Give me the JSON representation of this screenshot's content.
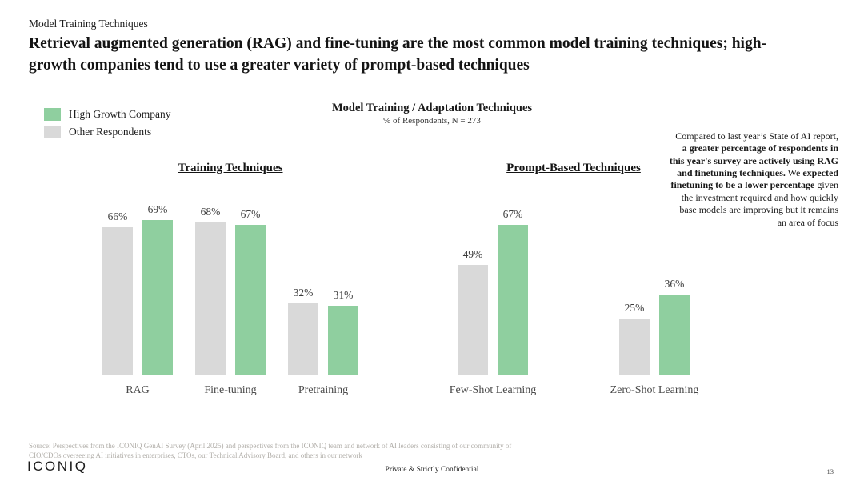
{
  "page": {
    "eyebrow": "Model Training Techniques",
    "title": "Retrieval augmented generation (RAG) and fine-tuning are the most common model training techniques; high-growth companies tend to use a greater variety of prompt-based techniques"
  },
  "legend": {
    "items": [
      {
        "label": "High Growth Company",
        "color": "#8fcf9f"
      },
      {
        "label": "Other Respondents",
        "color": "#d9d9d9"
      }
    ]
  },
  "chart_header": {
    "title": "Model Training / Adaptation Techniques",
    "subtitle": "% of Respondents, N = 273"
  },
  "annotation": {
    "segments": [
      {
        "text": "Compared to last year’s State of AI report, ",
        "bold": false
      },
      {
        "text": "a greater percentage of respondents in this year's survey are actively using RAG and finetuning techniques.",
        "bold": true
      },
      {
        "text": " We ",
        "bold": false
      },
      {
        "text": "expected finetuning to be a lower percentage",
        "bold": true
      },
      {
        "text": " given the investment required and how quickly base models are improving but it remains an area of focus",
        "bold": false
      }
    ]
  },
  "chart_data": [
    {
      "type": "bar",
      "title": "Training Techniques",
      "categories": [
        "RAG",
        "Fine-tuning",
        "Pretraining"
      ],
      "series": [
        {
          "name": "Other Respondents",
          "color": "#d9d9d9",
          "values": [
            66,
            68,
            32
          ]
        },
        {
          "name": "High Growth Company",
          "color": "#8fcf9f",
          "values": [
            69,
            67,
            31
          ]
        }
      ],
      "value_suffix": "%",
      "ylim": [
        0,
        100
      ],
      "grid": false,
      "legend_position": "top-left"
    },
    {
      "type": "bar",
      "title": "Prompt-Based Techniques",
      "categories": [
        "Few-Shot Learning",
        "Zero-Shot Learning"
      ],
      "series": [
        {
          "name": "Other Respondents",
          "color": "#d9d9d9",
          "values": [
            49,
            25
          ]
        },
        {
          "name": "High Growth Company",
          "color": "#8fcf9f",
          "values": [
            67,
            36
          ]
        }
      ],
      "value_suffix": "%",
      "ylim": [
        0,
        100
      ],
      "grid": false,
      "legend_position": "top-left"
    }
  ],
  "footer": {
    "source_line1": "Source: Perspectives from the ICONIQ GenAI Survey (April 2025) and perspectives from the ICONIQ team and network of AI leaders consisting of our community of",
    "source_line2": "CIO/CDOs overseeing AI initiatives in enterprises, CTOs, our Technical Advisory Board, and others in our network",
    "logo": "ICONIQ",
    "confidential": "Private & Strictly Confidential",
    "page_number": "13"
  }
}
